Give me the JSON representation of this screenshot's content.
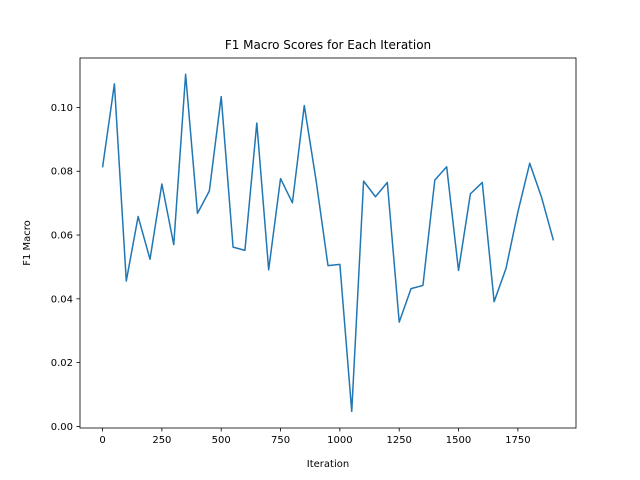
{
  "chart_data": {
    "type": "line",
    "title": "F1 Macro Scores for Each Iteration",
    "xlabel": "Iteration",
    "ylabel": "F1 Macro",
    "xlim": [
      -95,
      1995
    ],
    "ylim": [
      -0.0005,
      0.1155
    ],
    "grid": false,
    "xticks": [
      0,
      250,
      500,
      750,
      1000,
      1250,
      1500,
      1750
    ],
    "xtick_labels": [
      "0",
      "250",
      "500",
      "750",
      "1000",
      "1250",
      "1500",
      "1750"
    ],
    "yticks": [
      0.0,
      0.02,
      0.04,
      0.06,
      0.08,
      0.1
    ],
    "ytick_labels": [
      "0.00",
      "0.02",
      "0.04",
      "0.06",
      "0.08",
      "0.10"
    ],
    "series": [
      {
        "color": "#1f77b4",
        "x": [
          0,
          50,
          100,
          150,
          200,
          250,
          300,
          350,
          400,
          450,
          500,
          550,
          600,
          650,
          700,
          750,
          800,
          850,
          900,
          950,
          1000,
          1050,
          1100,
          1150,
          1200,
          1250,
          1300,
          1350,
          1400,
          1450,
          1500,
          1550,
          1600,
          1650,
          1700,
          1750,
          1800,
          1850,
          1900
        ],
        "y": [
          0.0812,
          0.1074,
          0.0456,
          0.0658,
          0.0524,
          0.076,
          0.057,
          0.1104,
          0.0668,
          0.0738,
          0.1034,
          0.0562,
          0.0552,
          0.0951,
          0.0491,
          0.0777,
          0.0701,
          0.1006,
          0.077,
          0.0504,
          0.0508,
          0.0047,
          0.0769,
          0.072,
          0.0765,
          0.0327,
          0.0432,
          0.0442,
          0.0772,
          0.0814,
          0.0489,
          0.0729,
          0.0765,
          0.0391,
          0.0495,
          0.0672,
          0.0825,
          0.0718,
          0.0583
        ]
      }
    ]
  }
}
